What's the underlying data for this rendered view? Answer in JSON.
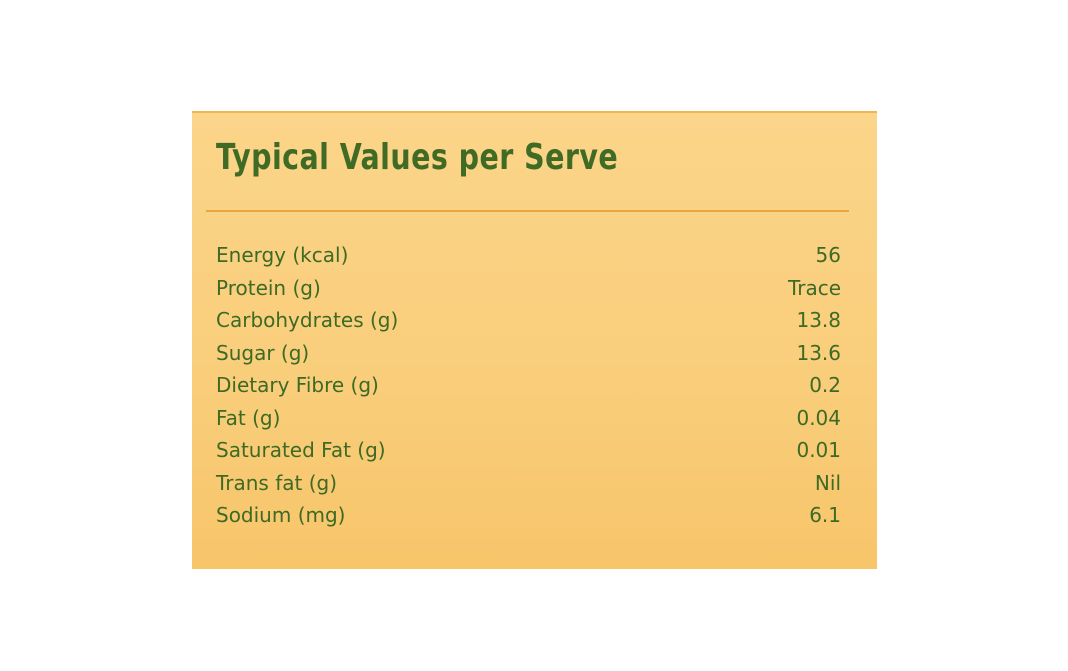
{
  "title": "Typical Values per Serve",
  "table": {
    "rows": [
      [
        "Energy (kcal)",
        "56"
      ],
      [
        "Protein (g)",
        "Trace"
      ],
      [
        "Carbohydrates (g)",
        "13.8"
      ],
      [
        "Sugar (g)",
        "13.6"
      ],
      [
        "Dietary Fibre (g)",
        "0.2"
      ],
      [
        "Fat (g)",
        "0.04"
      ],
      [
        "Saturated Fat (g)",
        "0.01"
      ],
      [
        "Trans fat (g)",
        "Nil"
      ],
      [
        "Sodium (mg)",
        "6.1"
      ]
    ]
  }
}
